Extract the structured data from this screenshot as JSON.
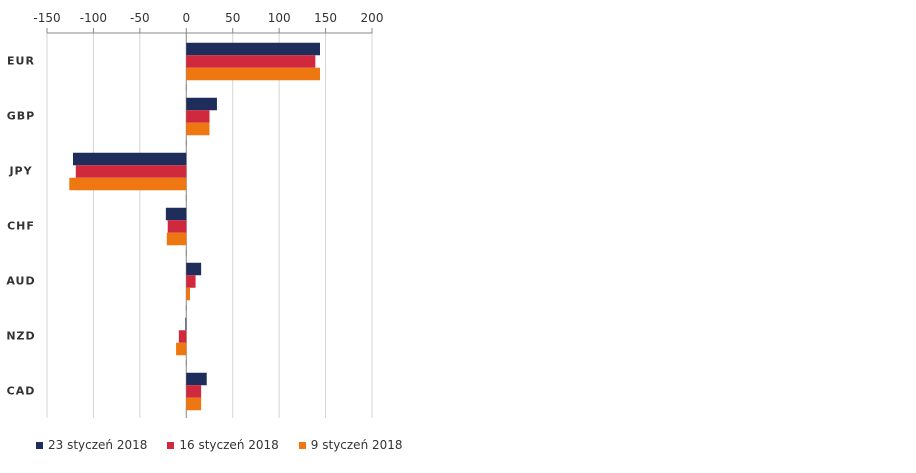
{
  "chart_data": {
    "type": "bar",
    "orientation": "horizontal",
    "title": "",
    "xlabel": "",
    "ylabel": "",
    "xlim": [
      -150,
      200
    ],
    "x_ticks": [
      -150,
      -100,
      -50,
      0,
      50,
      100,
      150,
      200
    ],
    "x_tick_labels": [
      "-150",
      "-100",
      "-50",
      "0",
      "50",
      "100",
      "150",
      "200"
    ],
    "axis_position": "top",
    "grid": true,
    "legend_position": "bottom-left",
    "categories": [
      "EUR",
      "GBP",
      "JPY",
      "CHF",
      "AUD",
      "NZD",
      "CAD"
    ],
    "series": [
      {
        "name": "23 styczeń 2018",
        "color": "#1f2d5a",
        "values": [
          144,
          33,
          -122,
          -22,
          16,
          -1,
          22
        ]
      },
      {
        "name": "16 styczeń 2018",
        "color": "#d0283c",
        "values": [
          139,
          25,
          -119,
          -20,
          10,
          -8,
          16
        ]
      },
      {
        "name": "9 styczeń 2018",
        "color": "#ee7711",
        "values": [
          144,
          25,
          -126,
          -21,
          4,
          -11,
          16
        ]
      }
    ]
  }
}
